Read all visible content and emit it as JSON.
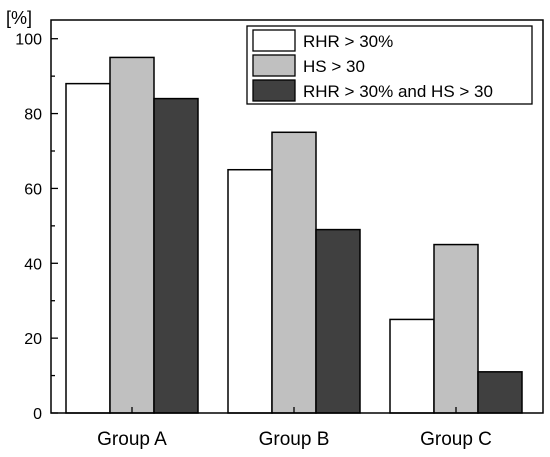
{
  "chart_data": {
    "type": "bar",
    "ylabel": "[%]",
    "ylim": [
      0,
      105
    ],
    "yticks": [
      0,
      20,
      40,
      60,
      80,
      100
    ],
    "categories": [
      "Group A",
      "Group B",
      "Group C"
    ],
    "series": [
      {
        "name": "RHR > 30%",
        "values": [
          88,
          65,
          25
        ],
        "color": "#ffffff"
      },
      {
        "name": "HS > 30",
        "values": [
          95,
          75,
          45
        ],
        "color": "#c0c0c0"
      },
      {
        "name": "RHR > 30% and HS > 30",
        "values": [
          84,
          49,
          11
        ],
        "color": "#404040"
      }
    ],
    "legend_position": "top-right",
    "grid": false
  }
}
